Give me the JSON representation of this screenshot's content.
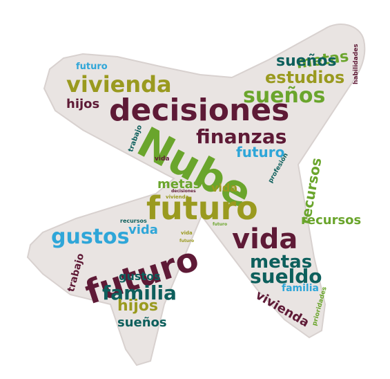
{
  "colors": {
    "background": "#ffffff",
    "plane_fill": "#e9e4e2",
    "plane_stroke": "#d8d1cf",
    "maroon": "#5e1a36",
    "green": "#6aa52c",
    "olive": "#9a9a1f",
    "blue": "#2fa6d8",
    "teal": "#0d5f5c"
  },
  "words": [
    {
      "text": "futuro",
      "color": "blue"
    },
    {
      "text": "vivienda",
      "color": "olive"
    },
    {
      "text": "hijos",
      "color": "maroon"
    },
    {
      "text": "decisiones",
      "color": "maroon"
    },
    {
      "text": "trabajo",
      "color": "teal"
    },
    {
      "text": "metas",
      "color": "green"
    },
    {
      "text": "sueños",
      "color": "teal"
    },
    {
      "text": "estudios",
      "color": "olive"
    },
    {
      "text": "sueños",
      "color": "green"
    },
    {
      "text": "habilidades",
      "color": "maroon"
    },
    {
      "text": "finanzas",
      "color": "maroon"
    },
    {
      "text": "Nube",
      "color": "green"
    },
    {
      "text": "futuro",
      "color": "blue"
    },
    {
      "text": "profesión",
      "color": "teal"
    },
    {
      "text": "recursos",
      "color": "green"
    },
    {
      "text": "vida",
      "color": "maroon"
    },
    {
      "text": "metas",
      "color": "green"
    },
    {
      "text": "vida",
      "color": "olive"
    },
    {
      "text": "decisiones",
      "color": "maroon"
    },
    {
      "text": "vivienda",
      "color": "olive"
    },
    {
      "text": "futuro",
      "color": "olive"
    },
    {
      "text": "recursos",
      "color": "teal"
    },
    {
      "text": "recursos",
      "color": "green"
    },
    {
      "text": "vida",
      "color": "blue"
    },
    {
      "text": "gustos",
      "color": "blue"
    },
    {
      "text": "vida",
      "color": "maroon"
    },
    {
      "text": "futuro",
      "color": "maroon"
    },
    {
      "text": "trabajo",
      "color": "maroon"
    },
    {
      "text": "metas",
      "color": "teal"
    },
    {
      "text": "sueldo",
      "color": "teal"
    },
    {
      "text": "gustos",
      "color": "teal"
    },
    {
      "text": "familia",
      "color": "blue"
    },
    {
      "text": "familia",
      "color": "teal"
    },
    {
      "text": "hijos",
      "color": "olive"
    },
    {
      "text": "vivienda",
      "color": "maroon"
    },
    {
      "text": "prioridades",
      "color": "green"
    },
    {
      "text": "sueños",
      "color": "teal"
    },
    {
      "text": "futuro",
      "color": "olive"
    },
    {
      "text": "vida",
      "color": "olive"
    },
    {
      "text": "futuro",
      "color": "green"
    }
  ]
}
